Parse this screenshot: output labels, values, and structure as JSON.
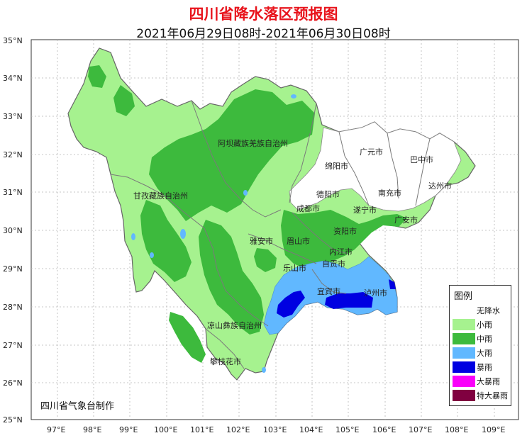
{
  "title": "四川省降水落区预报图",
  "subtitle": "2021年06月29日08时-2021年06月30日08时",
  "maker": "四川省气象台制作",
  "axes": {
    "lat_labels": [
      "35°N",
      "34°N",
      "33°N",
      "32°N",
      "31°N",
      "30°N",
      "29°N",
      "28°N",
      "27°N",
      "26°N",
      "25°N"
    ],
    "lon_labels": [
      "97°E",
      "98°E",
      "99°E",
      "100°E",
      "101°E",
      "102°E",
      "103°E",
      "104°E",
      "105°E",
      "106°E",
      "107°E",
      "108°E",
      "109°E"
    ]
  },
  "regions": {
    "aba": "阿坝藏族羌族自治州",
    "ganzi": "甘孜藏族自治州",
    "liangshan": "凉山彝族自治州",
    "panzhihua": "攀枝花市",
    "guangyuan": "广元市",
    "bazhong": "巴中市",
    "mianyang": "绵阳市",
    "dazhou": "达州市",
    "deyang": "德阳市",
    "nanchong": "南充市",
    "chengdu": "成都市",
    "suining": "遂宁市",
    "guangan": "广安市",
    "ziyang": "资阳市",
    "yaan": "雅安市",
    "meishan": "眉山市",
    "neijiang": "内江市",
    "leshan": "乐山市",
    "zigong": "自贡市",
    "yibin": "宜宾市",
    "luzhou": "泸州市"
  },
  "legend": {
    "title": "图例",
    "items": [
      {
        "label": "无降水",
        "color": "#ffffff"
      },
      {
        "label": "小雨",
        "color": "#a6f28f"
      },
      {
        "label": "中雨",
        "color": "#3dba3d"
      },
      {
        "label": "大雨",
        "color": "#61b8ff"
      },
      {
        "label": "暴雨",
        "color": "#0000e1"
      },
      {
        "label": "大暴雨",
        "color": "#fa00fa"
      },
      {
        "label": "特大暴雨",
        "color": "#800040"
      }
    ]
  }
}
